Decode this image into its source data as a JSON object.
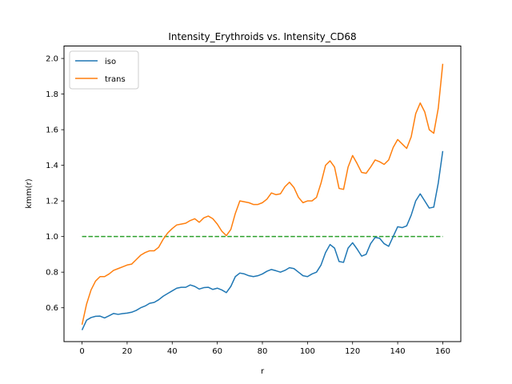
{
  "chart_data": {
    "type": "line",
    "title": "Intensity_Erythroids vs. Intensity_CD68",
    "xlabel": "r",
    "ylabel": "kmm(r)",
    "xlim": [
      -8,
      168
    ],
    "ylim": [
      0.41,
      2.07
    ],
    "xticks": [
      0,
      20,
      40,
      60,
      80,
      100,
      120,
      140,
      160
    ],
    "xtick_labels": [
      "0",
      "20",
      "40",
      "60",
      "80",
      "100",
      "120",
      "140",
      "160"
    ],
    "yticks": [
      0.6,
      0.8,
      1.0,
      1.2,
      1.4,
      1.6,
      1.8,
      2.0
    ],
    "ytick_labels": [
      "0.6",
      "0.8",
      "1.0",
      "1.2",
      "1.4",
      "1.6",
      "1.8",
      "2.0"
    ],
    "grid": false,
    "legend_position": "upper-left",
    "reference_line": {
      "y": 1.0,
      "x_range": [
        0,
        160
      ],
      "color": "#2ca02c",
      "style": "dashed"
    },
    "series": [
      {
        "name": "iso",
        "color": "#1f77b4",
        "points": [
          [
            0,
            0.475
          ],
          [
            2,
            0.53
          ],
          [
            4,
            0.545
          ],
          [
            6,
            0.552
          ],
          [
            8,
            0.553
          ],
          [
            10,
            0.543
          ],
          [
            12,
            0.555
          ],
          [
            14,
            0.568
          ],
          [
            16,
            0.563
          ],
          [
            18,
            0.567
          ],
          [
            20,
            0.57
          ],
          [
            22,
            0.575
          ],
          [
            24,
            0.585
          ],
          [
            26,
            0.6
          ],
          [
            28,
            0.61
          ],
          [
            30,
            0.625
          ],
          [
            32,
            0.63
          ],
          [
            34,
            0.645
          ],
          [
            36,
            0.665
          ],
          [
            38,
            0.68
          ],
          [
            40,
            0.695
          ],
          [
            42,
            0.71
          ],
          [
            44,
            0.715
          ],
          [
            46,
            0.715
          ],
          [
            48,
            0.728
          ],
          [
            50,
            0.72
          ],
          [
            52,
            0.705
          ],
          [
            54,
            0.713
          ],
          [
            56,
            0.715
          ],
          [
            58,
            0.703
          ],
          [
            60,
            0.71
          ],
          [
            62,
            0.7
          ],
          [
            64,
            0.685
          ],
          [
            66,
            0.72
          ],
          [
            68,
            0.775
          ],
          [
            70,
            0.795
          ],
          [
            72,
            0.79
          ],
          [
            74,
            0.78
          ],
          [
            76,
            0.775
          ],
          [
            78,
            0.78
          ],
          [
            80,
            0.79
          ],
          [
            82,
            0.805
          ],
          [
            84,
            0.815
          ],
          [
            86,
            0.808
          ],
          [
            88,
            0.8
          ],
          [
            90,
            0.81
          ],
          [
            92,
            0.825
          ],
          [
            94,
            0.82
          ],
          [
            96,
            0.8
          ],
          [
            98,
            0.78
          ],
          [
            100,
            0.775
          ],
          [
            102,
            0.79
          ],
          [
            104,
            0.8
          ],
          [
            106,
            0.84
          ],
          [
            108,
            0.91
          ],
          [
            110,
            0.955
          ],
          [
            112,
            0.935
          ],
          [
            114,
            0.86
          ],
          [
            116,
            0.855
          ],
          [
            118,
            0.935
          ],
          [
            120,
            0.965
          ],
          [
            122,
            0.93
          ],
          [
            124,
            0.89
          ],
          [
            126,
            0.9
          ],
          [
            128,
            0.96
          ],
          [
            130,
            0.995
          ],
          [
            132,
            0.99
          ],
          [
            134,
            0.96
          ],
          [
            136,
            0.945
          ],
          [
            138,
            1.0
          ],
          [
            140,
            1.055
          ],
          [
            142,
            1.05
          ],
          [
            144,
            1.06
          ],
          [
            146,
            1.12
          ],
          [
            148,
            1.2
          ],
          [
            150,
            1.24
          ],
          [
            152,
            1.2
          ],
          [
            154,
            1.16
          ],
          [
            156,
            1.165
          ],
          [
            158,
            1.3
          ],
          [
            160,
            1.48
          ]
        ]
      },
      {
        "name": "trans",
        "color": "#ff7f0e",
        "points": [
          [
            0,
            0.505
          ],
          [
            2,
            0.62
          ],
          [
            4,
            0.7
          ],
          [
            6,
            0.75
          ],
          [
            8,
            0.775
          ],
          [
            10,
            0.775
          ],
          [
            12,
            0.79
          ],
          [
            14,
            0.81
          ],
          [
            16,
            0.82
          ],
          [
            18,
            0.83
          ],
          [
            20,
            0.84
          ],
          [
            22,
            0.845
          ],
          [
            24,
            0.87
          ],
          [
            26,
            0.895
          ],
          [
            28,
            0.91
          ],
          [
            30,
            0.92
          ],
          [
            32,
            0.92
          ],
          [
            34,
            0.94
          ],
          [
            36,
            0.985
          ],
          [
            38,
            1.02
          ],
          [
            40,
            1.045
          ],
          [
            42,
            1.065
          ],
          [
            44,
            1.07
          ],
          [
            46,
            1.075
          ],
          [
            48,
            1.09
          ],
          [
            50,
            1.1
          ],
          [
            52,
            1.08
          ],
          [
            54,
            1.105
          ],
          [
            56,
            1.115
          ],
          [
            58,
            1.1
          ],
          [
            60,
            1.07
          ],
          [
            62,
            1.03
          ],
          [
            64,
            1.005
          ],
          [
            66,
            1.04
          ],
          [
            68,
            1.13
          ],
          [
            70,
            1.2
          ],
          [
            72,
            1.195
          ],
          [
            74,
            1.19
          ],
          [
            76,
            1.18
          ],
          [
            78,
            1.18
          ],
          [
            80,
            1.19
          ],
          [
            82,
            1.21
          ],
          [
            84,
            1.245
          ],
          [
            86,
            1.235
          ],
          [
            88,
            1.24
          ],
          [
            90,
            1.28
          ],
          [
            92,
            1.305
          ],
          [
            94,
            1.275
          ],
          [
            96,
            1.22
          ],
          [
            98,
            1.19
          ],
          [
            100,
            1.2
          ],
          [
            102,
            1.2
          ],
          [
            104,
            1.22
          ],
          [
            106,
            1.3
          ],
          [
            108,
            1.4
          ],
          [
            110,
            1.425
          ],
          [
            112,
            1.39
          ],
          [
            114,
            1.27
          ],
          [
            116,
            1.265
          ],
          [
            118,
            1.39
          ],
          [
            120,
            1.455
          ],
          [
            122,
            1.41
          ],
          [
            124,
            1.36
          ],
          [
            126,
            1.355
          ],
          [
            128,
            1.39
          ],
          [
            130,
            1.43
          ],
          [
            132,
            1.42
          ],
          [
            134,
            1.405
          ],
          [
            136,
            1.43
          ],
          [
            138,
            1.5
          ],
          [
            140,
            1.545
          ],
          [
            142,
            1.52
          ],
          [
            144,
            1.495
          ],
          [
            146,
            1.56
          ],
          [
            148,
            1.69
          ],
          [
            150,
            1.75
          ],
          [
            152,
            1.7
          ],
          [
            154,
            1.6
          ],
          [
            156,
            1.58
          ],
          [
            158,
            1.72
          ],
          [
            160,
            1.97
          ]
        ]
      }
    ]
  }
}
